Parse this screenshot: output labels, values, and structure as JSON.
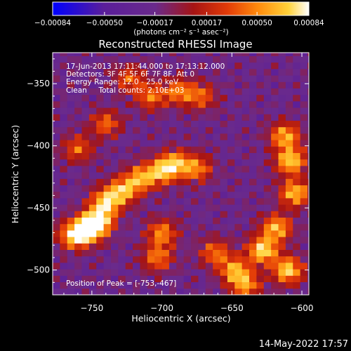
{
  "chart_data": {
    "type": "heatmap",
    "title": "Reconstructed RHESSI Image",
    "xlabel": "Heliocentric X (arcsec)",
    "ylabel": "Heliocentric Y (arcsec)",
    "xlim": [
      -778,
      -595
    ],
    "ylim": [
      -520,
      -325
    ],
    "x_ticks": [
      -750,
      -700,
      -650,
      -600
    ],
    "y_ticks": [
      -500,
      -450,
      -400,
      -350
    ],
    "x_tick_labels": [
      "−750",
      "−700",
      "−650",
      "−600"
    ],
    "y_tick_labels": [
      "−500",
      "−450",
      "−400",
      "−350"
    ],
    "annotations": [
      "17-Jun-2013 17:11:44.000 to 17:13:12.000",
      "Detectors: 3F 4F 5F 6F 7F 8F, Att 0",
      "Energy Range: 12.0 - 25.0 keV",
      "Clean     Total counts: 2.10E+03"
    ],
    "peak_label": "Position of Peak = [-753,-467]",
    "colorbar": {
      "range": [
        -0.00084,
        0.00084
      ],
      "tick_values": [
        -0.00084,
        -0.0005,
        -0.00017,
        0.00017,
        0.0005,
        0.00084
      ],
      "tick_labels": [
        "−0.00084",
        "−0.00050",
        "−0.00017",
        "0.00017",
        "0.00050",
        "0.00084"
      ],
      "units_label": "(photons cm⁻² s⁻¹ asec⁻²)",
      "colormap": [
        "#0000ff",
        "#3010c0",
        "#5a1e9a",
        "#6a2a8c",
        "#a61414",
        "#e23a08",
        "#ff8a0c",
        "#ffd23a",
        "#ffffff"
      ]
    },
    "hot_spots": [
      {
        "x": -753,
        "y": -467,
        "value": 0.00084
      },
      {
        "x": -745,
        "y": -460,
        "value": 0.0007
      },
      {
        "x": -763,
        "y": -472,
        "value": 0.00062
      },
      {
        "x": -740,
        "y": -445,
        "value": 0.0006
      },
      {
        "x": -728,
        "y": -436,
        "value": 0.00055
      },
      {
        "x": -715,
        "y": -426,
        "value": 0.0005
      },
      {
        "x": -700,
        "y": -420,
        "value": 0.00052
      },
      {
        "x": -690,
        "y": -414,
        "value": 0.00046
      },
      {
        "x": -675,
        "y": -418,
        "value": 0.0004
      },
      {
        "x": -700,
        "y": -470,
        "value": 0.00042
      },
      {
        "x": -703,
        "y": -490,
        "value": 0.00038
      },
      {
        "x": -708,
        "y": -360,
        "value": 0.00036
      },
      {
        "x": -688,
        "y": -356,
        "value": 0.00038
      },
      {
        "x": -672,
        "y": -360,
        "value": 0.0003
      },
      {
        "x": -723,
        "y": -346,
        "value": 0.00028
      },
      {
        "x": -740,
        "y": -382,
        "value": 0.00032
      },
      {
        "x": -760,
        "y": -402,
        "value": 0.0003
      },
      {
        "x": -612,
        "y": -392,
        "value": 0.00055
      },
      {
        "x": -608,
        "y": -412,
        "value": 0.00066
      },
      {
        "x": -605,
        "y": -438,
        "value": 0.0006
      },
      {
        "x": -618,
        "y": -466,
        "value": 0.00058
      },
      {
        "x": -628,
        "y": -484,
        "value": 0.00072
      },
      {
        "x": -610,
        "y": -500,
        "value": 0.00068
      },
      {
        "x": -648,
        "y": -500,
        "value": 0.0005
      },
      {
        "x": -640,
        "y": -512,
        "value": 0.00045
      },
      {
        "x": -662,
        "y": -486,
        "value": 0.00035
      }
    ]
  },
  "footer": {
    "date_stamp": "14-May-2022 17:57"
  }
}
